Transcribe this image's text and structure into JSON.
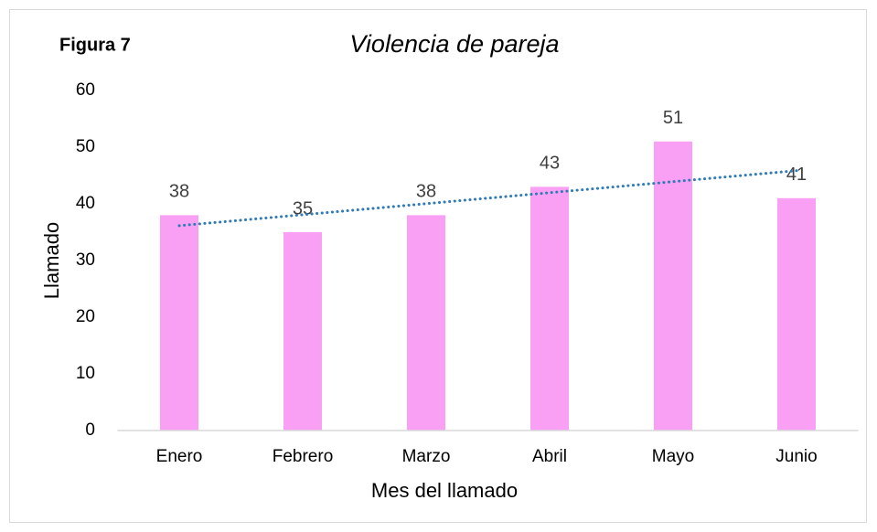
{
  "chart_data": {
    "type": "bar",
    "figure_label": "Figura 7",
    "title": "Violencia de pareja",
    "x_label": "Mes del llamado",
    "y_label": "Llamado",
    "categories": [
      "Enero",
      "Febrero",
      "Marzo",
      "Abril",
      "Mayo",
      "Junio"
    ],
    "values": [
      38,
      35,
      38,
      43,
      51,
      41
    ],
    "color": "#f9a0f4",
    "ylim": [
      0,
      60
    ],
    "yticks": [
      0,
      10,
      20,
      30,
      40,
      50,
      60
    ],
    "grid": false,
    "trendline": {
      "type": "linear",
      "color": "#2e7bb5"
    }
  }
}
